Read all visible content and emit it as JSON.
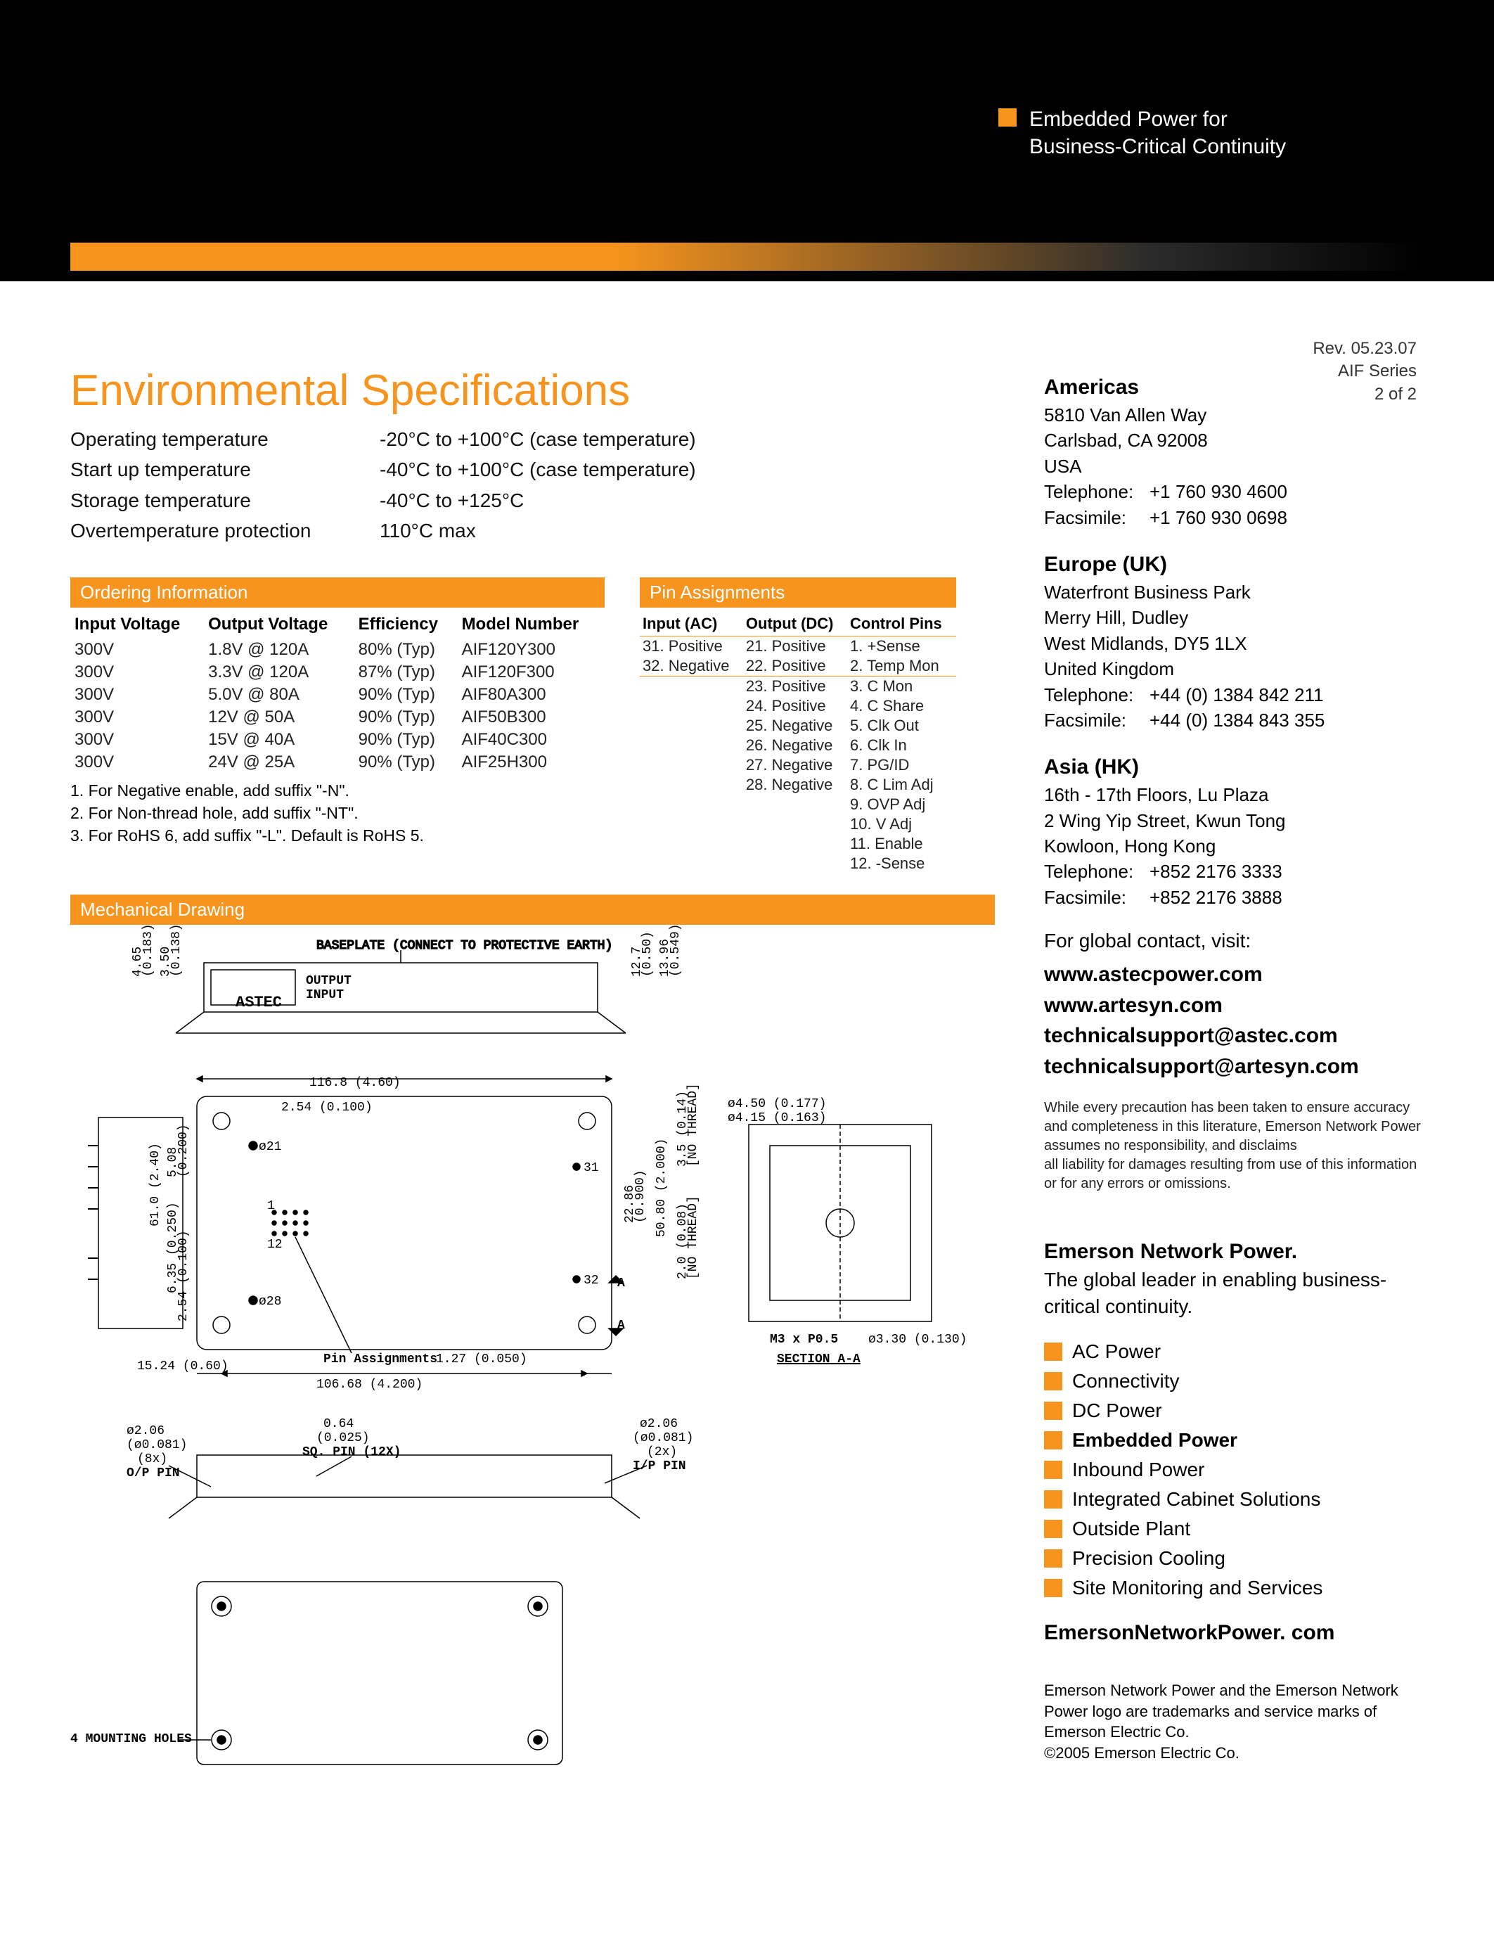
{
  "tagline": "Embedded Power for\nBusiness-Critical Continuity",
  "rev": {
    "line1": "Rev. 05.23.07",
    "line2": "AIF Series",
    "line3": "2 of 2"
  },
  "title": "Environmental Specifications",
  "env": [
    {
      "k": "Operating temperature",
      "v": "-20°C to +100°C (case temperature)"
    },
    {
      "k": "Start up temperature",
      "v": "-40°C to +100°C (case temperature)"
    },
    {
      "k": "Storage temperature",
      "v": "-40°C to +125°C"
    },
    {
      "k": "Overtemperature protection",
      "v": "110°C max"
    }
  ],
  "ordering": {
    "heading": "Ordering Information",
    "cols": [
      "Input Voltage",
      "Output Voltage",
      "Efficiency",
      "Model Number"
    ],
    "rows": [
      [
        "300V",
        "1.8V @ 120A",
        "80% (Typ)",
        "AIF120Y300"
      ],
      [
        "300V",
        "3.3V @ 120A",
        "87% (Typ)",
        "AIF120F300"
      ],
      [
        "300V",
        "5.0V @ 80A",
        "90% (Typ)",
        "AIF80A300"
      ],
      [
        "300V",
        "12V @ 50A",
        "90% (Typ)",
        "AIF50B300"
      ],
      [
        "300V",
        "15V @ 40A",
        "90% (Typ)",
        "AIF40C300"
      ],
      [
        "300V",
        "24V @ 25A",
        "90% (Typ)",
        "AIF25H300"
      ]
    ],
    "notes": [
      "1. For Negative enable, add suffix \"-N\".",
      "2. For Non-thread hole, add suffix \"-NT\".",
      "3. For RoHS 6, add suffix \"-L\". Default is RoHS 5."
    ]
  },
  "pins": {
    "heading": "Pin Assignments",
    "cols": [
      "Input (AC)",
      "Output (DC)",
      "Control Pins"
    ],
    "rows": [
      [
        "31. Positive",
        "21. Positive",
        "1. +Sense"
      ],
      [
        "32. Negative",
        "22. Positive",
        "2. Temp Mon"
      ],
      [
        "",
        "23. Positive",
        "3. C Mon"
      ],
      [
        "",
        "24. Positive",
        "4. C Share"
      ],
      [
        "",
        "25. Negative",
        "5. Clk Out"
      ],
      [
        "",
        "26. Negative",
        "6. Clk In"
      ],
      [
        "",
        "27. Negative",
        "7. PG/ID"
      ],
      [
        "",
        "28. Negative",
        "8. C Lim Adj"
      ],
      [
        "",
        "",
        "9. OVP Adj"
      ],
      [
        "",
        "",
        "10. V Adj"
      ],
      [
        "",
        "",
        "11. Enable"
      ],
      [
        "",
        "",
        "12. -Sense"
      ]
    ]
  },
  "mech": {
    "heading": "Mechanical Drawing",
    "labels": {
      "baseplate": "BASEPLATE (CONNECT TO PROTECTIVE EARTH)",
      "output": "OUTPUT",
      "input": "INPUT",
      "astec": "ASTEC",
      "pin_assign": "Pin Assignments",
      "mount": "4 MOUNTING HOLES",
      "section": "SECTION A-A",
      "m3": "M3 x P0.5",
      "sq_pin": "SQ. PIN (12X)",
      "op_pin": "O/P PIN",
      "ip_pin": "I/P PIN",
      "no_thread": "[NO THREAD]",
      "dims": {
        "d465": "4.65",
        "d0183": "(0.183)",
        "d350": "3.50",
        "d0138": "(0.138)",
        "d127": "12.7",
        "d050": "(0.50)",
        "d1396": "13.96",
        "d0549": "(0.549)",
        "d1524": "15.24 (0.60)",
        "d10668": "106.68 (4.200)",
        "d1168": "116.8 (4.60)",
        "d254": "2.54 (0.100)",
        "d127b": "1.27 (0.050)",
        "d450": "ø4.50 (0.177)",
        "d415": "ø4.15 (0.163)",
        "d35": "3.5 (0.14)",
        "d20": "2.0 (0.08)",
        "d5080": "50.80 (2.000)",
        "d2286": "22.86",
        "d0900": "(0.900)",
        "d610": "61.0 (2.40)",
        "d508": "5.08",
        "d0200": "(0.200)",
        "d635": "6.35 (0.250)",
        "d254b": "2.54 (0.100)",
        "d330": "ø3.30 (0.130)",
        "d206a": "ø2.06",
        "d206b": "(ø0.081)",
        "d8x": "(8x)",
        "d064": "0.64",
        "d0025": "(0.025)",
        "d206c": "ø2.06",
        "d206d": "(ø0.081)",
        "d2x": "(2x)",
        "p21": "ø21",
        "p28": "ø28",
        "p31": "31",
        "p32": "32",
        "pa1": "1",
        "pa12": "12",
        "paA": "A",
        "paAb": "A"
      }
    }
  },
  "contacts": {
    "americas": {
      "title": "Americas",
      "lines": [
        "5810 Van Allen Way",
        "Carlsbad, CA 92008",
        "USA"
      ],
      "tel": "+1 760 930 4600",
      "fax": "+1 760 930 0698"
    },
    "europe": {
      "title": "Europe (UK)",
      "lines": [
        "Waterfront Business Park",
        "Merry Hill, Dudley",
        "West Midlands, DY5 1LX",
        "United Kingdom"
      ],
      "tel": "+44 (0) 1384 842 211",
      "fax": "+44 (0) 1384 843 355"
    },
    "asia": {
      "title": "Asia (HK)",
      "lines": [
        "16th - 17th Floors, Lu Plaza",
        "2 Wing Yip Street, Kwun Tong",
        "Kowloon, Hong Kong"
      ],
      "tel": "+852 2176 3333",
      "fax": "+852 2176 3888"
    },
    "labels": {
      "tel": "Telephone:",
      "fax": "Facsimile:"
    }
  },
  "global_contact": "For global contact, visit:",
  "links": [
    "www.astecpower.com",
    "www.artesyn.com",
    "technicalsupport@astec.com",
    "technicalsupport@artesyn.com"
  ],
  "disclaimer": "While every precaution has been taken to ensure accuracy and completeness in this literature, Emerson Network Power assumes no responsibility, and disclaims\nall liability for damages resulting from use of this information or for any errors or omissions.",
  "enp": {
    "title": "Emerson Network Power.",
    "sub": "The global leader in enabling business-critical continuity.",
    "services": [
      {
        "t": "AC Power",
        "b": false
      },
      {
        "t": "Connectivity",
        "b": false
      },
      {
        "t": "DC Power",
        "b": false
      },
      {
        "t": "Embedded Power",
        "b": true
      },
      {
        "t": "Inbound Power",
        "b": false
      },
      {
        "t": "Integrated Cabinet Solutions",
        "b": false
      },
      {
        "t": "Outside Plant",
        "b": false
      },
      {
        "t": "Precision Cooling",
        "b": false
      },
      {
        "t": "Site Monitoring and Services",
        "b": false
      }
    ],
    "url": "EmersonNetworkPower. com"
  },
  "trademark": "Emerson Network Power and the Emerson Network Power logo are trademarks and service marks of Emerson Electric Co.\n©2005 Emerson Electric Co."
}
